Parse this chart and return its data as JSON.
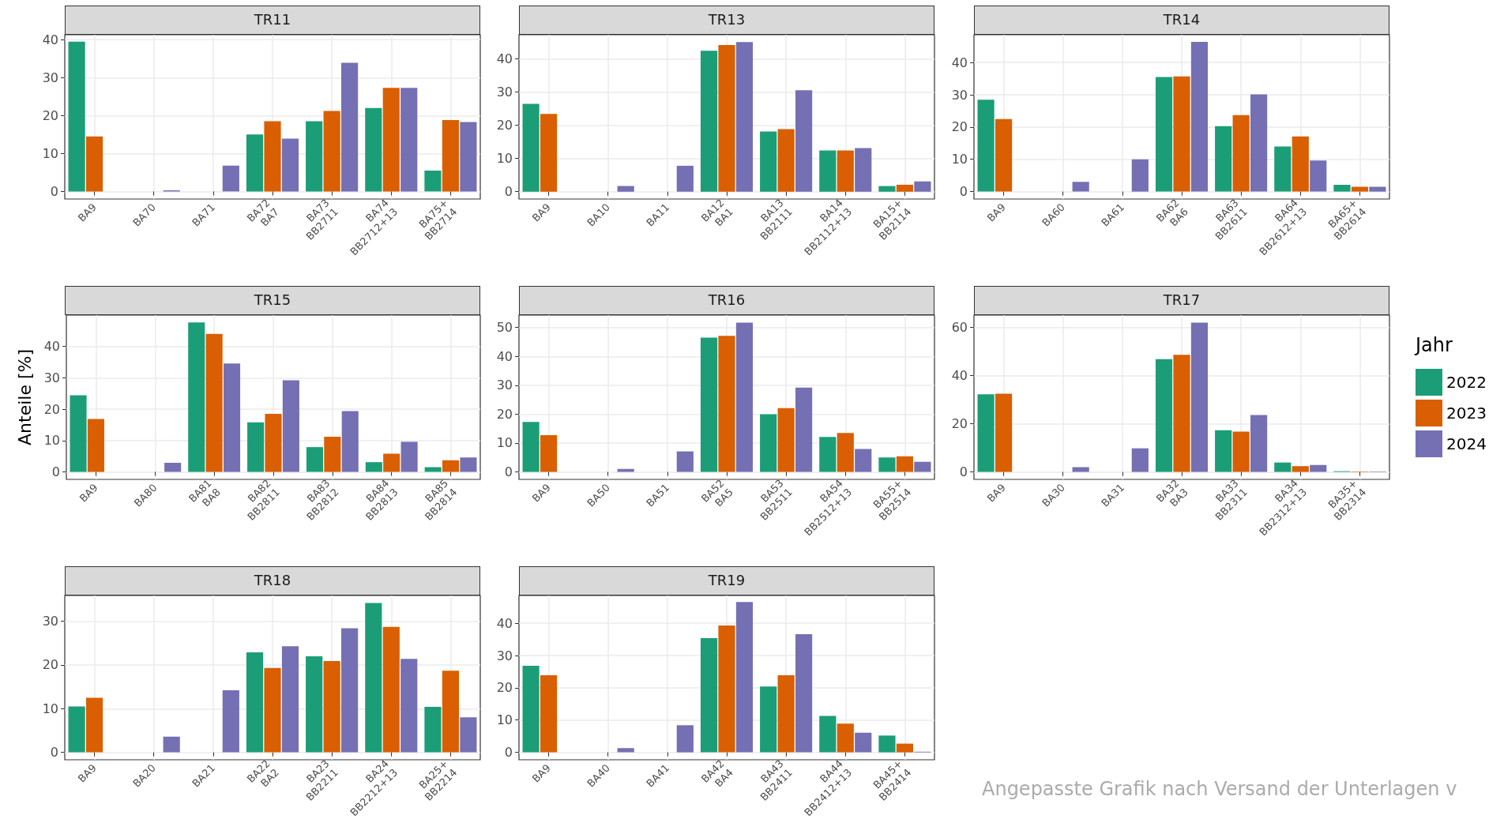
{
  "chart_data": [
    {
      "type": "bar",
      "title": "TR11",
      "categories": [
        "BA9",
        "BA70",
        "BA71",
        "BA72\nBA7",
        "BA73\nBB2711",
        "BA74\nBB2712+13",
        "BA75+\nBB2714"
      ],
      "ylim": [
        -2,
        41.3
      ],
      "yticks": [
        0,
        10,
        20,
        30,
        40
      ],
      "grid": true,
      "series": [
        {
          "color": "#1b9e77",
          "values": [
            39.5,
            null,
            null,
            15.0,
            18.5,
            22.0,
            5.5
          ]
        },
        {
          "color": "#d95f02",
          "values": [
            14.5,
            null,
            null,
            18.5,
            21.2,
            27.3,
            18.8
          ]
        },
        {
          "color": "#7570b3",
          "values": [
            null,
            0.3,
            6.8,
            13.9,
            33.9,
            27.3,
            18.3
          ]
        }
      ]
    },
    {
      "type": "bar",
      "title": "TR13",
      "categories": [
        "BA9",
        "BA10",
        "BA11",
        "BA12\nBA1",
        "BA13\nBB2111",
        "BA14\nBB2112+13",
        "BA15+\nBB2114"
      ],
      "ylim": [
        -2.2,
        47.2
      ],
      "yticks": [
        0,
        10,
        20,
        30,
        40
      ],
      "grid": true,
      "series": [
        {
          "color": "#1b9e77",
          "values": [
            26.4,
            null,
            null,
            42.4,
            18.1,
            12.4,
            1.7
          ]
        },
        {
          "color": "#d95f02",
          "values": [
            23.4,
            null,
            null,
            44.1,
            18.8,
            12.4,
            2.1
          ]
        },
        {
          "color": "#7570b3",
          "values": [
            null,
            1.7,
            7.8,
            45.0,
            30.5,
            13.1,
            3.1
          ]
        }
      ]
    },
    {
      "type": "bar",
      "title": "TR14",
      "categories": [
        "BA9",
        "BA60",
        "BA61",
        "BA62\nBA6",
        "BA63\nBB2611",
        "BA64\nBB2612+13",
        "BA65+\nBB2614"
      ],
      "ylim": [
        -2.3,
        48.6
      ],
      "yticks": [
        0,
        10,
        20,
        30,
        40
      ],
      "grid": true,
      "series": [
        {
          "color": "#1b9e77",
          "values": [
            28.5,
            null,
            null,
            35.5,
            20.3,
            14.0,
            2.1
          ]
        },
        {
          "color": "#d95f02",
          "values": [
            22.5,
            null,
            null,
            35.7,
            23.7,
            17.1,
            1.5
          ]
        },
        {
          "color": "#7570b3",
          "values": [
            null,
            3.0,
            10.0,
            46.4,
            30.1,
            9.6,
            1.5
          ]
        }
      ]
    },
    {
      "type": "bar",
      "title": "TR15",
      "ylabel": "Anteile [%]",
      "categories": [
        "BA9",
        "BA80",
        "BA81\nBA8",
        "BA82\nBB2811",
        "BA83\nBB2812",
        "BA84\nBB2813",
        "BA85\nBB2814"
      ],
      "ylim": [
        -2.4,
        50
      ],
      "yticks": [
        0,
        10,
        20,
        30,
        40
      ],
      "grid": true,
      "series": [
        {
          "color": "#1b9e77",
          "values": [
            24.4,
            null,
            47.7,
            15.8,
            7.9,
            3.1,
            1.5
          ]
        },
        {
          "color": "#d95f02",
          "values": [
            16.9,
            null,
            44.0,
            18.5,
            11.2,
            5.8,
            3.7
          ]
        },
        {
          "color": "#7570b3",
          "values": [
            null,
            2.9,
            34.6,
            29.2,
            19.4,
            9.6,
            4.6
          ]
        }
      ]
    },
    {
      "type": "bar",
      "title": "TR16",
      "categories": [
        "BA9",
        "BA50",
        "BA51",
        "BA52\nBA5",
        "BA53\nBB2511",
        "BA54\nBB2512+13",
        "BA55+\nBB2514"
      ],
      "ylim": [
        -2.6,
        54.3
      ],
      "yticks": [
        0,
        10,
        20,
        30,
        40,
        50
      ],
      "grid": true,
      "series": [
        {
          "color": "#1b9e77",
          "values": [
            17.3,
            null,
            null,
            46.5,
            20.0,
            12.1,
            5.0
          ]
        },
        {
          "color": "#d95f02",
          "values": [
            12.7,
            null,
            null,
            47.1,
            22.1,
            13.5,
            5.4
          ]
        },
        {
          "color": "#7570b3",
          "values": [
            null,
            1.0,
            7.1,
            51.7,
            29.2,
            7.9,
            3.5
          ]
        }
      ]
    },
    {
      "type": "bar",
      "title": "TR17",
      "legend_title": "Jahr",
      "legend": "right",
      "categories": [
        "BA9",
        "BA30",
        "BA31",
        "BA32\nBA3",
        "BA33\nBB2311",
        "BA34\nBB2312+13",
        "BA35+\nBB2314"
      ],
      "ylim": [
        -3.1,
        65.1
      ],
      "yticks": [
        0,
        20,
        40,
        60
      ],
      "grid": true,
      "series": [
        {
          "name": "2022",
          "color": "#1b9e77",
          "values": [
            32.2,
            null,
            null,
            46.8,
            17.3,
            3.9,
            0.3
          ]
        },
        {
          "name": "2023",
          "color": "#d95f02",
          "values": [
            32.5,
            null,
            null,
            48.6,
            16.7,
            2.4,
            0.2
          ]
        },
        {
          "name": "2024",
          "color": "#7570b3",
          "values": [
            null,
            2.0,
            9.8,
            62.0,
            23.6,
            2.9,
            0.2
          ]
        }
      ]
    },
    {
      "type": "bar",
      "title": "TR18",
      "categories": [
        "BA9",
        "BA20",
        "BA21",
        "BA22\nBA2",
        "BA23\nBB2211",
        "BA24\nBB2212+13",
        "BA25+\nBB2214"
      ],
      "ylim": [
        -1.7,
        35.9
      ],
      "yticks": [
        0,
        10,
        20,
        30
      ],
      "grid": true,
      "series": [
        {
          "color": "#1b9e77",
          "values": [
            10.5,
            null,
            null,
            22.9,
            22.0,
            34.2,
            10.4
          ]
        },
        {
          "color": "#d95f02",
          "values": [
            12.5,
            null,
            null,
            19.3,
            20.9,
            28.7,
            18.7
          ]
        },
        {
          "color": "#7570b3",
          "values": [
            null,
            3.6,
            14.2,
            24.3,
            28.4,
            21.4,
            8.0
          ]
        }
      ]
    },
    {
      "type": "bar",
      "title": "TR19",
      "annotations": [
        "Angepasste Grafik nach Versand der Unterlagen v"
      ],
      "categories": [
        "BA9",
        "BA40",
        "BA41",
        "BA42\nBA4",
        "BA43\nBB2411",
        "BA44\nBB2412+13",
        "BA45+\nBB2414"
      ],
      "ylim": [
        -2.3,
        48.6
      ],
      "yticks": [
        0,
        10,
        20,
        30,
        40
      ],
      "grid": true,
      "series": [
        {
          "color": "#1b9e77",
          "values": [
            26.8,
            null,
            null,
            35.4,
            20.4,
            11.3,
            5.2
          ]
        },
        {
          "color": "#d95f02",
          "values": [
            23.9,
            null,
            null,
            39.3,
            23.9,
            8.9,
            2.7
          ]
        },
        {
          "color": "#7570b3",
          "values": [
            null,
            1.3,
            8.4,
            46.6,
            36.6,
            6.1,
            0.2
          ]
        }
      ]
    }
  ]
}
